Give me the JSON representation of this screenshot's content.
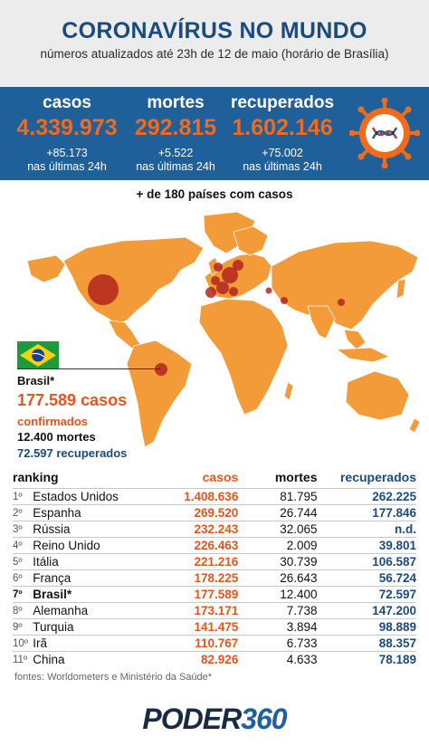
{
  "header": {
    "title": "CORONAVÍRUS NO MUNDO",
    "subtitle": "números atualizados até 23h de 12 de maio (horário de Brasília)"
  },
  "stats": [
    {
      "label": "casos",
      "value": "4.339.973",
      "increase": "+85.173",
      "period": "nas últimas 24h"
    },
    {
      "label": "mortes",
      "value": "292.815",
      "increase": "+5.522",
      "period": "nas últimas 24h"
    },
    {
      "label": "recuperados",
      "value": "1.602.146",
      "increase": "+75.002",
      "period": "nas últimas 24h"
    }
  ],
  "virus_icon": "virus-dna-icon",
  "countries_note": "+ de 180 países com casos",
  "brazil": {
    "name": "Brasil*",
    "cases": "177.589 casos",
    "cases_suffix": "confirmados",
    "deaths": "12.400 mortes",
    "recovered": "72.597 recuperados"
  },
  "table": {
    "headers": [
      "ranking",
      "casos",
      "mortes",
      "recuperados"
    ],
    "rows": [
      {
        "pos": "1º",
        "country": "Estados Unidos",
        "cases": "1.408.636",
        "deaths": "81.795",
        "recovered": "262.225"
      },
      {
        "pos": "2º",
        "country": "Espanha",
        "cases": "269.520",
        "deaths": "26.744",
        "recovered": "177.846"
      },
      {
        "pos": "3º",
        "country": "Rússia",
        "cases": "232.243",
        "deaths": "32.065",
        "recovered": "n.d."
      },
      {
        "pos": "4º",
        "country": "Reino Unido",
        "cases": "226.463",
        "deaths": "2.009",
        "recovered": "39.801"
      },
      {
        "pos": "5º",
        "country": "Itália",
        "cases": "221.216",
        "deaths": "30.739",
        "recovered": "106.587"
      },
      {
        "pos": "6º",
        "country": "França",
        "cases": "178.225",
        "deaths": "26.643",
        "recovered": "56.724"
      },
      {
        "pos": "7º",
        "country": "Brasil*",
        "cases": "177.589",
        "deaths": "12.400",
        "recovered": "72.597"
      },
      {
        "pos": "8º",
        "country": "Alemanha",
        "cases": "173.171",
        "deaths": "7.738",
        "recovered": "147.200"
      },
      {
        "pos": "9º",
        "country": "Turquia",
        "cases": "141.475",
        "deaths": "3.894",
        "recovered": "98.889"
      },
      {
        "pos": "10º",
        "country": "Irã",
        "cases": "110.767",
        "deaths": "6.733",
        "recovered": "88.357"
      },
      {
        "pos": "11º",
        "country": "China",
        "cases": "82.926",
        "deaths": "4.633",
        "recovered": "78.189"
      }
    ]
  },
  "source": "fontes: Worldometers e Ministério da Saúde*",
  "logo": {
    "part1": "PODER",
    "part2": "360"
  },
  "colors": {
    "navy": "#1a4a80",
    "band": "#1f5f9a",
    "orange": "#f26b1d",
    "map": "#f29b38",
    "bubble": "#b3241f"
  }
}
